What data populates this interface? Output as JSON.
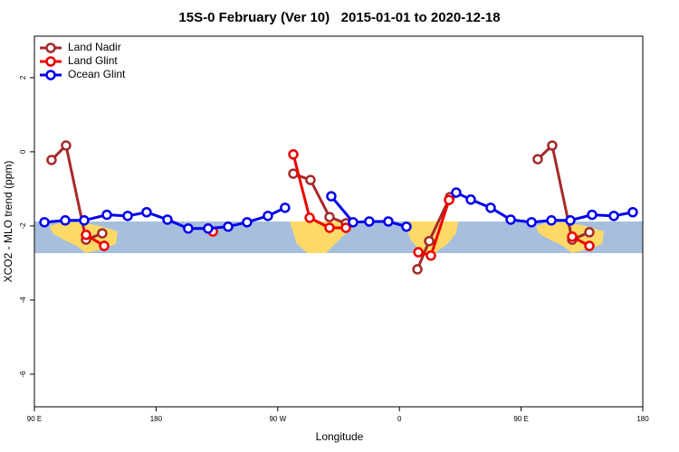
{
  "chart_data": {
    "type": "line",
    "title": "15S-0 February (Ver 10)   2015-01-01 to 2020-12-18",
    "xlabel": "Longitude",
    "ylabel": "XCO2 - MLO trend (ppm)",
    "xlim": [
      90,
      540
    ],
    "ylim": [
      -6.88,
      3.12
    ],
    "xticks": [
      {
        "value": 90,
        "label": "90 E"
      },
      180,
      {
        "value": 270,
        "label": "90 W"
      },
      {
        "value": 360,
        "label": "0"
      },
      {
        "value": 450,
        "label": "90 E"
      },
      {
        "value": 540,
        "label": "180"
      }
    ],
    "yticks": [
      2,
      0,
      -2,
      -4,
      -6
    ],
    "legend": "top-left",
    "series": [
      {
        "name": "Land Nadir",
        "color": "#a52a2a",
        "x": [
          102.7,
          113.4,
          128.2,
          140.2,
          null,
          281.5,
          294.2,
          308.3,
          320.4,
          null,
          373.3,
          382,
          397.4,
          null,
          462.3,
          473,
          487.8,
          500.5
        ],
        "values": [
          -0.22,
          0.17,
          -2.37,
          -2.2,
          null,
          -0.59,
          -0.76,
          -1.76,
          -1.93,
          null,
          -3.17,
          -2.41,
          -1.22,
          null,
          -0.2,
          0.17,
          -2.37,
          -2.17
        ]
      },
      {
        "name": "Land Glint",
        "color": "#ee0000",
        "x": [
          128.2,
          141.6,
          null,
          222,
          null,
          281.5,
          293.6,
          308.3,
          320.4,
          null,
          374,
          383.3,
          396.7,
          null,
          487.8,
          500.5
        ],
        "values": [
          -2.24,
          -2.54,
          null,
          -2.15,
          null,
          -0.07,
          -1.78,
          -2.05,
          -2.05,
          null,
          -2.71,
          -2.8,
          -1.3,
          null,
          -2.29,
          -2.54
        ]
      },
      {
        "name": "Ocean Glint",
        "color": "#0000ee",
        "x": [
          97.4,
          112.8,
          126.8,
          143.6,
          159,
          173,
          188.4,
          203.8,
          218.5,
          233.3,
          247.3,
          262.7,
          275.4,
          null,
          309.6,
          325.7,
          337.7,
          351.8,
          365.2,
          null,
          402,
          412.8,
          427.5,
          442.3,
          457.7,
          472.4,
          486.4,
          502.5,
          518.6,
          532.6
        ],
        "values": [
          -1.9,
          -1.85,
          -1.85,
          -1.7,
          -1.73,
          -1.63,
          -1.83,
          -2.07,
          -2.07,
          -2.02,
          -1.9,
          -1.73,
          -1.51,
          null,
          -1.2,
          -1.9,
          -1.88,
          -1.88,
          -2.02,
          null,
          -1.1,
          -1.29,
          -1.51,
          -1.83,
          -1.9,
          -1.85,
          -1.85,
          -1.7,
          -1.73,
          -1.63
        ]
      }
    ]
  }
}
